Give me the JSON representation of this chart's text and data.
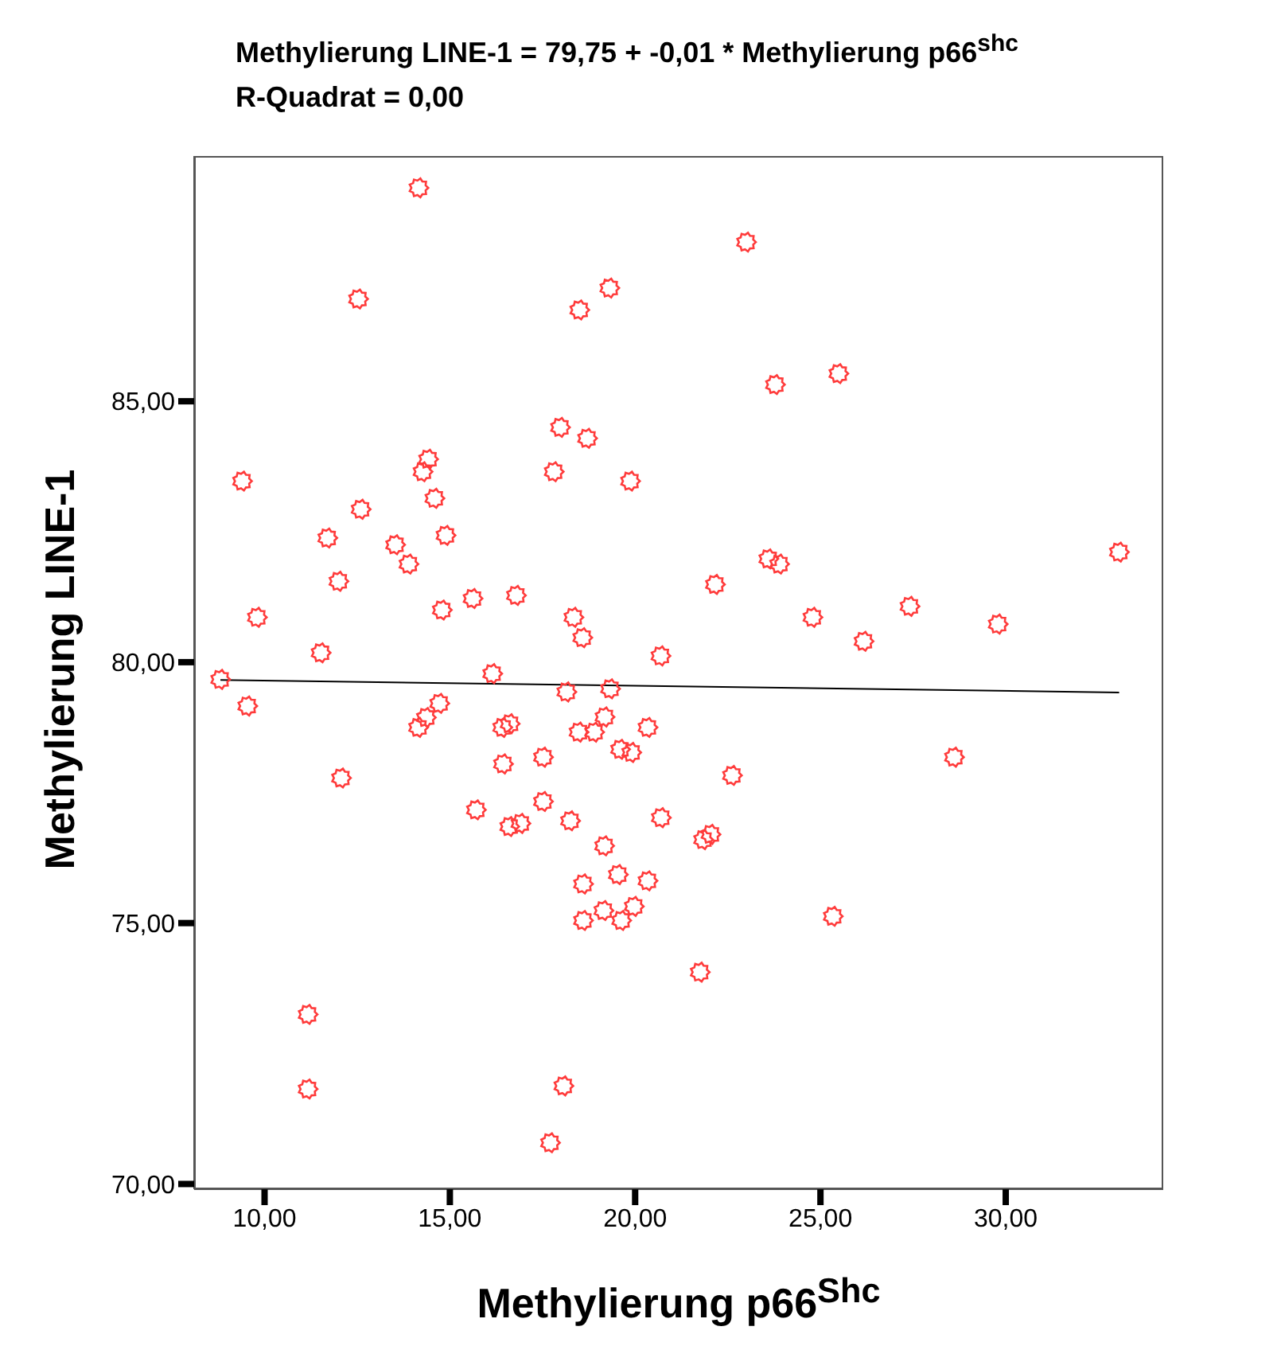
{
  "chart_data": {
    "type": "scatter",
    "title": "Methylierung LINE-1 = 79,75 + -0,01 * Methylierung p66$^{shc}$",
    "subtitle": "R-Quadrat = 0,00",
    "xlabel": "Methylierung p66$^{Shc}$",
    "ylabel": "Methylierung LINE-1",
    "xlim": [
      8.1,
      34.25
    ],
    "ylim": [
      69.9,
      89.7
    ],
    "xticks": [
      {
        "value": 10,
        "label": "10,00"
      },
      {
        "value": 15,
        "label": "15,00"
      },
      {
        "value": 20,
        "label": "20,00"
      },
      {
        "value": 25,
        "label": "25,00"
      },
      {
        "value": 30,
        "label": "30,00"
      }
    ],
    "yticks": [
      {
        "value": 70,
        "label": "70,00"
      },
      {
        "value": 75,
        "label": "75,00"
      },
      {
        "value": 80,
        "label": "80,00"
      },
      {
        "value": 85,
        "label": "85,00"
      }
    ],
    "grid": false,
    "marker": "circle",
    "series": [
      {
        "color": "#ff3b3b",
        "x": [
          14.16,
          12.53,
          23.0,
          18.5,
          19.31,
          23.78,
          25.49,
          9.4,
          17.98,
          18.71,
          17.81,
          19.87,
          14.42,
          14.27,
          14.59,
          12.6,
          11.7,
          13.53,
          13.89,
          14.89,
          12.0,
          9.8,
          14.79,
          15.62,
          16.79,
          18.34,
          18.58,
          11.52,
          20.69,
          8.81,
          16.15,
          23.6,
          23.89,
          22.16,
          24.79,
          26.17,
          27.41,
          29.79,
          33.06,
          9.54,
          12.07,
          14.15,
          14.36,
          14.72,
          18.15,
          19.33,
          16.42,
          16.62,
          16.44,
          17.52,
          18.48,
          18.9,
          19.18,
          20.34,
          19.6,
          19.9,
          15.71,
          17.52,
          16.61,
          16.91,
          18.25,
          20.7,
          19.17,
          18.6,
          19.54,
          20.34,
          18.6,
          19.15,
          19.63,
          19.97,
          11.17,
          11.17,
          18.07,
          17.71,
          21.75,
          22.62,
          21.84,
          22.04,
          25.34,
          28.61
        ],
        "values": [
          89.09,
          86.96,
          88.05,
          86.75,
          87.17,
          85.32,
          85.53,
          83.47,
          84.5,
          84.29,
          83.65,
          83.47,
          83.89,
          83.65,
          83.14,
          82.93,
          82.38,
          82.25,
          81.88,
          82.43,
          81.55,
          80.86,
          81.0,
          81.22,
          81.28,
          80.86,
          80.47,
          80.18,
          80.12,
          79.67,
          79.78,
          81.98,
          81.88,
          81.49,
          80.86,
          80.4,
          81.07,
          80.73,
          82.11,
          79.16,
          77.78,
          78.75,
          78.94,
          79.21,
          79.43,
          79.49,
          78.75,
          78.82,
          78.05,
          78.18,
          78.66,
          78.66,
          78.95,
          78.75,
          78.33,
          78.27,
          77.17,
          77.33,
          76.85,
          76.91,
          76.96,
          77.02,
          76.48,
          75.75,
          75.93,
          75.81,
          75.05,
          75.24,
          75.05,
          75.32,
          73.25,
          71.82,
          71.88,
          70.79,
          74.06,
          77.83,
          76.6,
          76.7,
          75.13,
          78.18
        ]
      },
      {
        "type": "line",
        "color": "#000000",
        "marker": "none",
        "x": [
          8.81,
          33.06
        ],
        "values": [
          79.66,
          79.42
        ]
      }
    ]
  }
}
